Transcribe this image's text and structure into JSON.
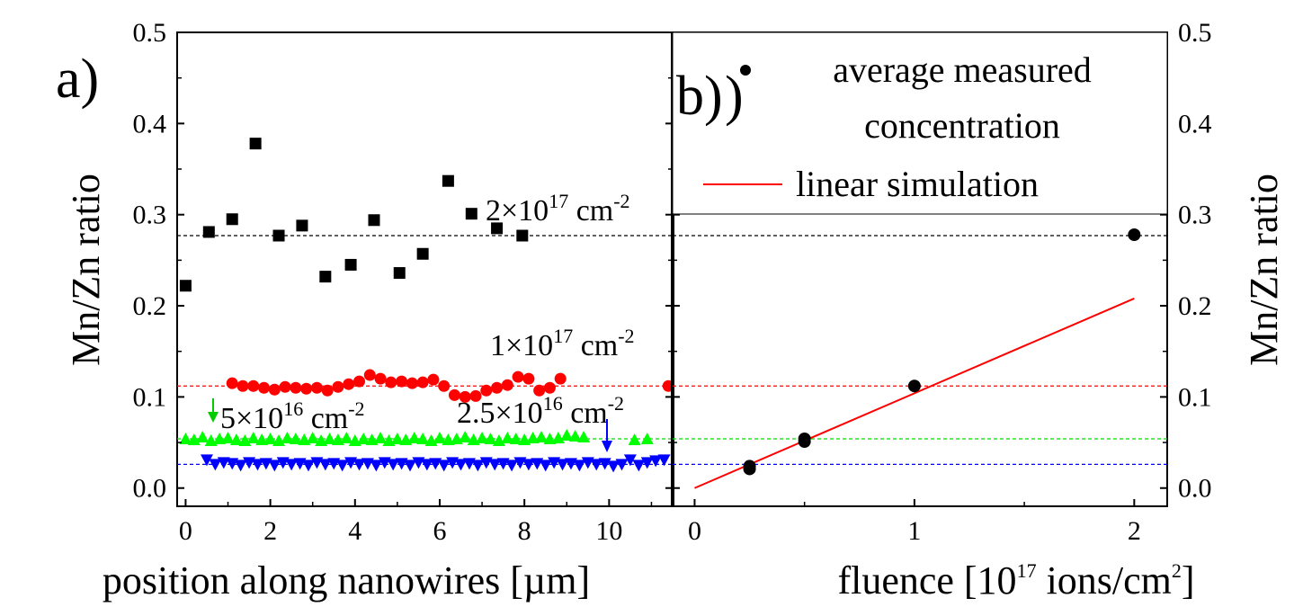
{
  "chart_data": [
    {
      "panel": "a)",
      "type": "scatter",
      "xlabel": "position along nanowires [µm]",
      "ylabel": "Mn/Zn ratio",
      "xlim": [
        -0.2,
        11.5
      ],
      "ylim": [
        -0.02,
        0.5
      ],
      "x_ticks": [
        0,
        2,
        4,
        6,
        8,
        10
      ],
      "y_ticks": [
        0.0,
        0.1,
        0.2,
        0.3,
        0.4,
        0.5
      ],
      "y_tick_labels": [
        "0.0",
        "0.1",
        "0.2",
        "0.3",
        "0.4",
        "0.5"
      ],
      "series": [
        {
          "marker": "square",
          "color": "#000000",
          "annotation": {
            "base": "2×10",
            "exp": "17",
            "unit": " cm",
            "unit_exp": "-2"
          },
          "mean_line": 0.277,
          "x": [
            0.0,
            0.55,
            1.1,
            1.65,
            2.2,
            2.75,
            3.3,
            3.9,
            4.45,
            5.05,
            5.6,
            6.2,
            6.75,
            7.35,
            7.95
          ],
          "y": [
            0.222,
            0.281,
            0.295,
            0.378,
            0.277,
            0.288,
            0.232,
            0.245,
            0.294,
            0.236,
            0.257,
            0.337,
            0.301,
            0.285,
            0.277
          ]
        },
        {
          "marker": "circle",
          "color": "#ff0000",
          "annotation": {
            "base": "1×10",
            "exp": "17",
            "unit": " cm",
            "unit_exp": "-2"
          },
          "mean_line": 0.112,
          "x": [
            1.1,
            1.35,
            1.6,
            1.85,
            2.1,
            2.35,
            2.6,
            2.85,
            3.1,
            3.35,
            3.6,
            3.85,
            4.1,
            4.35,
            4.6,
            4.85,
            5.1,
            5.35,
            5.6,
            5.85,
            6.1,
            6.35,
            6.6,
            6.85,
            7.1,
            7.35,
            7.6,
            7.85,
            8.1,
            8.35,
            8.6,
            8.85,
            11.4
          ],
          "y": [
            0.115,
            0.112,
            0.112,
            0.11,
            0.108,
            0.111,
            0.11,
            0.109,
            0.11,
            0.107,
            0.111,
            0.114,
            0.117,
            0.124,
            0.12,
            0.116,
            0.117,
            0.115,
            0.116,
            0.119,
            0.112,
            0.102,
            0.1,
            0.101,
            0.107,
            0.11,
            0.113,
            0.122,
            0.12,
            0.107,
            0.11,
            0.12,
            0.112
          ]
        },
        {
          "marker": "triangle-up",
          "color": "#00ff00",
          "annotation": {
            "base": "5×10",
            "exp": "16",
            "unit": " cm",
            "unit_exp": "-2"
          },
          "mean_line": 0.054,
          "x": [
            0.0,
            0.2,
            0.4,
            0.6,
            0.8,
            1.0,
            1.2,
            1.4,
            1.6,
            1.8,
            2.0,
            2.2,
            2.4,
            2.6,
            2.8,
            3.0,
            3.2,
            3.4,
            3.6,
            3.8,
            4.0,
            4.2,
            4.4,
            4.6,
            4.8,
            5.0,
            5.2,
            5.4,
            5.6,
            5.8,
            6.0,
            6.2,
            6.4,
            6.6,
            6.8,
            7.0,
            7.2,
            7.4,
            7.6,
            7.8,
            8.0,
            8.2,
            8.4,
            8.6,
            8.8,
            9.0,
            9.2,
            9.4,
            10.6,
            10.9
          ],
          "y": [
            0.054,
            0.053,
            0.056,
            0.052,
            0.054,
            0.055,
            0.053,
            0.052,
            0.055,
            0.053,
            0.054,
            0.052,
            0.055,
            0.054,
            0.053,
            0.055,
            0.052,
            0.054,
            0.053,
            0.055,
            0.052,
            0.054,
            0.053,
            0.055,
            0.052,
            0.054,
            0.053,
            0.055,
            0.054,
            0.052,
            0.055,
            0.053,
            0.054,
            0.056,
            0.053,
            0.055,
            0.054,
            0.052,
            0.055,
            0.054,
            0.053,
            0.055,
            0.056,
            0.054,
            0.055,
            0.058,
            0.057,
            0.056,
            0.053,
            0.054
          ]
        },
        {
          "marker": "triangle-down",
          "color": "#0000ff",
          "annotation": {
            "base": "2.5×10",
            "exp": "16",
            "unit": " cm",
            "unit_exp": "-2"
          },
          "mean_line": 0.026,
          "x": [
            0.5,
            0.7,
            0.9,
            1.1,
            1.3,
            1.5,
            1.7,
            1.9,
            2.1,
            2.3,
            2.5,
            2.7,
            2.9,
            3.1,
            3.3,
            3.5,
            3.7,
            3.9,
            4.1,
            4.3,
            4.5,
            4.7,
            4.9,
            5.1,
            5.3,
            5.5,
            5.7,
            5.9,
            6.1,
            6.3,
            6.5,
            6.7,
            6.9,
            7.1,
            7.3,
            7.5,
            7.7,
            7.9,
            8.1,
            8.3,
            8.5,
            8.7,
            8.9,
            9.1,
            9.3,
            9.5,
            9.7,
            9.9,
            10.1,
            10.3,
            10.5,
            10.7,
            10.9,
            11.1,
            11.3
          ],
          "y": [
            0.031,
            0.026,
            0.028,
            0.027,
            0.025,
            0.028,
            0.026,
            0.027,
            0.025,
            0.028,
            0.026,
            0.027,
            0.025,
            0.028,
            0.026,
            0.027,
            0.025,
            0.028,
            0.026,
            0.027,
            0.025,
            0.028,
            0.026,
            0.027,
            0.025,
            0.028,
            0.026,
            0.027,
            0.025,
            0.028,
            0.026,
            0.027,
            0.025,
            0.028,
            0.026,
            0.027,
            0.025,
            0.028,
            0.026,
            0.027,
            0.025,
            0.028,
            0.026,
            0.027,
            0.025,
            0.028,
            0.026,
            0.027,
            0.024,
            0.026,
            0.031,
            0.025,
            0.028,
            0.03,
            0.031
          ]
        }
      ]
    },
    {
      "panel": "b)",
      "type": "scatter",
      "xlabel": "fluence [10",
      "xlabel_exp": "17",
      "xlabel_rest": " ions/cm",
      "xlabel_exp2": "2",
      "xlabel_end": "]",
      "ylabel": "Mn/Zn ratio",
      "xlim": [
        -0.1,
        2.15
      ],
      "ylim": [
        -0.02,
        0.5
      ],
      "x_ticks": [
        0,
        1,
        2
      ],
      "y_ticks": [
        0.0,
        0.1,
        0.2,
        0.3,
        0.4,
        0.5
      ],
      "y_tick_labels": [
        "0.0",
        "0.1",
        "0.2",
        "0.3",
        "0.4",
        "0.5"
      ],
      "legend": {
        "placement": "top-right",
        "items": [
          {
            "label_line1": "average measured",
            "label_line2": "concentration",
            "marker": "circle",
            "color": "#000000"
          },
          {
            "label_line1": "linear simulation",
            "marker": "line",
            "color": "#ff0000"
          }
        ]
      },
      "points": {
        "x": [
          0.25,
          0.25,
          0.5,
          0.5,
          1.0,
          2.0
        ],
        "y": [
          0.024,
          0.021,
          0.054,
          0.051,
          0.112,
          0.278
        ],
        "color": "#000000"
      },
      "line": {
        "x": [
          0.0,
          2.0
        ],
        "y": [
          0.0,
          0.208
        ],
        "color": "#ff0000"
      },
      "mean_lines": [
        {
          "y": 0.277,
          "color": "#000000"
        },
        {
          "y": 0.112,
          "color": "#ff0000"
        },
        {
          "y": 0.054,
          "color": "#00ff00"
        },
        {
          "y": 0.026,
          "color": "#0000ff"
        }
      ]
    }
  ]
}
